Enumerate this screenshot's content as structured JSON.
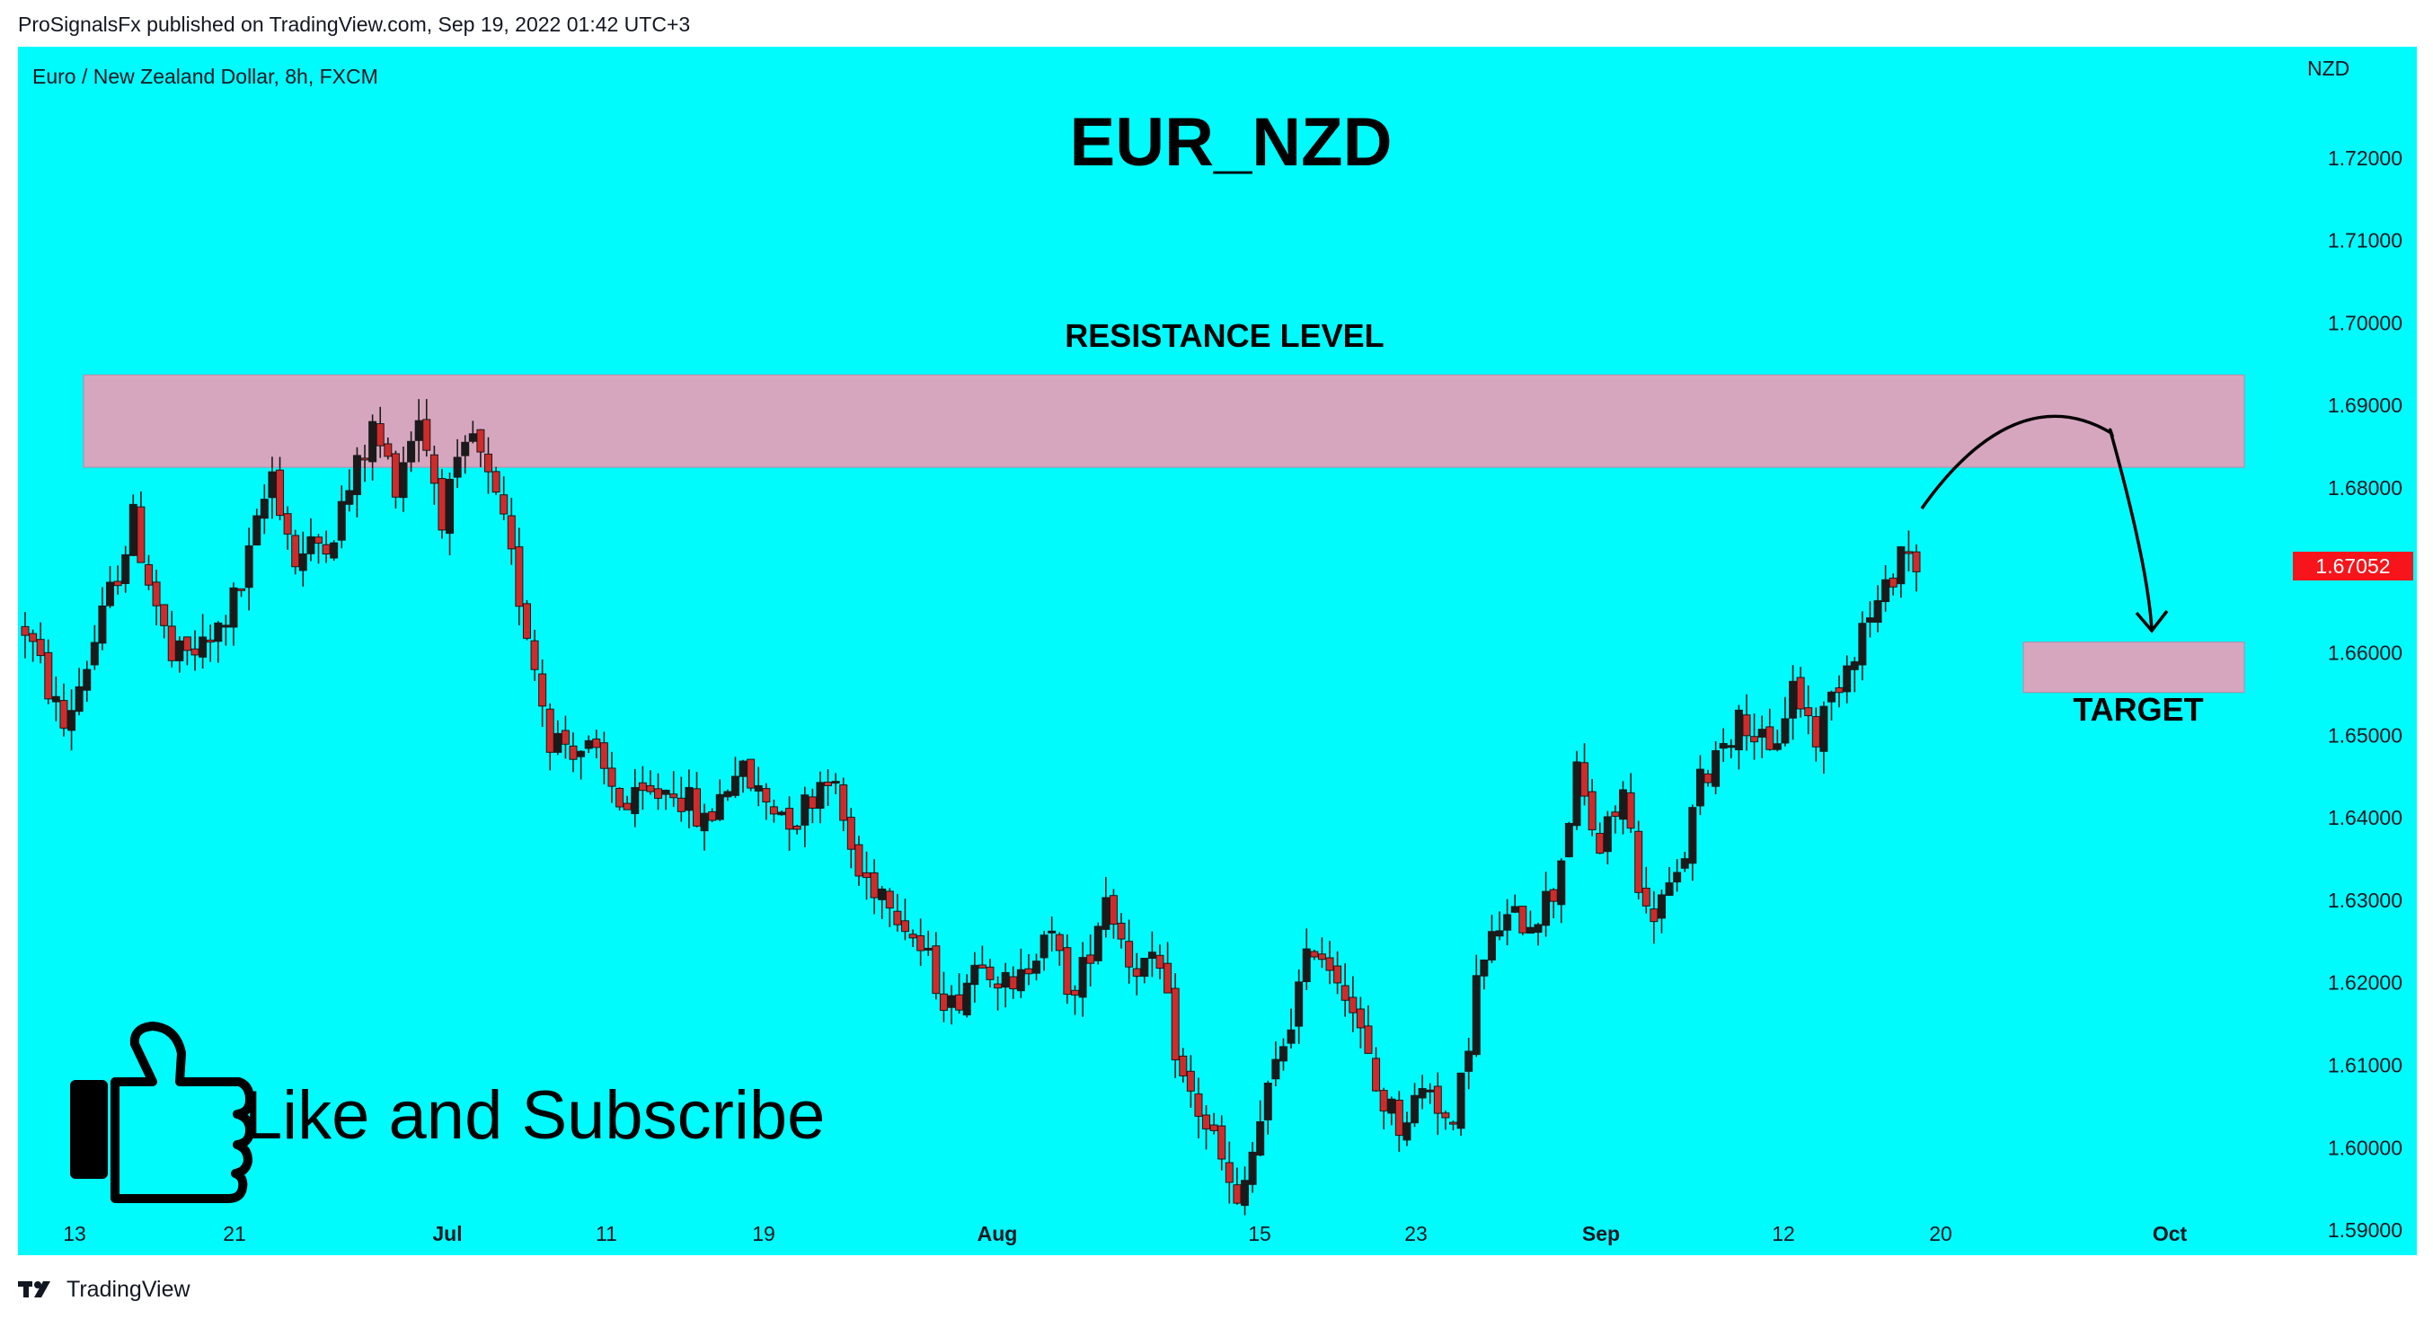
{
  "header": {
    "published_text": "ProSignalsFx published on TradingView.com, Sep 19, 2022 01:42 UTC+3"
  },
  "footer": {
    "brand": "TradingView",
    "logo_icon": "tradingview-logo-icon"
  },
  "colors": {
    "background": "#00fbfd",
    "zone": "#d6a6bf",
    "zone_border": "#b48aa6",
    "candle_up": "#1a1a1a",
    "candle_down": "#d02b2b",
    "price_tag": "#f7141a"
  },
  "chart_data": {
    "type": "candlestick",
    "symbol_info": "Euro / New Zealand Dollar, 8h, FXCM",
    "title": "EUR_NZD",
    "currency_label": "NZD",
    "last_price": "1.67052",
    "ylim": [
      1.5875,
      1.7335
    ],
    "yticks": [
      "1.72000",
      "1.71000",
      "1.70000",
      "1.69000",
      "1.68000",
      "1.67000",
      "1.66000",
      "1.65000",
      "1.64000",
      "1.63000",
      "1.62000",
      "1.61000",
      "1.60000",
      "1.59000"
    ],
    "xticks": [
      "13",
      "21",
      "Jul",
      "11",
      "19",
      "Aug",
      "15",
      "23",
      "Sep",
      "12",
      "20",
      "Oct"
    ],
    "grid": false,
    "annotations": {
      "resistance_label": "RESISTANCE LEVEL",
      "resistance_zone": [
        1.6825,
        1.6937
      ],
      "target_label": "TARGET",
      "target_zone": [
        1.6552,
        1.6613
      ],
      "projection": "arrow from last candle up into resistance, then down to target",
      "promo_text": "Like and Subscribe",
      "promo_icon": "thumbs-up-icon"
    },
    "anchors": [
      [
        0,
        1.663
      ],
      [
        5,
        1.651
      ],
      [
        10,
        1.664
      ],
      [
        14,
        1.676
      ],
      [
        19,
        1.659
      ],
      [
        24,
        1.661
      ],
      [
        28,
        1.668
      ],
      [
        32,
        1.682
      ],
      [
        35,
        1.671
      ],
      [
        40,
        1.675
      ],
      [
        45,
        1.687
      ],
      [
        48,
        1.681
      ],
      [
        51,
        1.689
      ],
      [
        54,
        1.677
      ],
      [
        58,
        1.686
      ],
      [
        62,
        1.675
      ],
      [
        65,
        1.663
      ],
      [
        68,
        1.65
      ],
      [
        73,
        1.648
      ],
      [
        78,
        1.641
      ],
      [
        84,
        1.644
      ],
      [
        88,
        1.639
      ],
      [
        92,
        1.646
      ],
      [
        96,
        1.642
      ],
      [
        100,
        1.64
      ],
      [
        104,
        1.646
      ],
      [
        108,
        1.633
      ],
      [
        112,
        1.631
      ],
      [
        116,
        1.624
      ],
      [
        120,
        1.617
      ],
      [
        124,
        1.624
      ],
      [
        128,
        1.618
      ],
      [
        132,
        1.627
      ],
      [
        136,
        1.618
      ],
      [
        140,
        1.631
      ],
      [
        143,
        1.623
      ],
      [
        147,
        1.621
      ],
      [
        150,
        1.608
      ],
      [
        154,
        1.601
      ],
      [
        157,
        1.592
      ],
      [
        160,
        1.603
      ],
      [
        164,
        1.616
      ],
      [
        167,
        1.625
      ],
      [
        171,
        1.62
      ],
      [
        175,
        1.607
      ],
      [
        178,
        1.603
      ],
      [
        182,
        1.608
      ],
      [
        185,
        1.601
      ],
      [
        188,
        1.62
      ],
      [
        191,
        1.627
      ],
      [
        195,
        1.628
      ],
      [
        198,
        1.631
      ],
      [
        201,
        1.645
      ],
      [
        204,
        1.636
      ],
      [
        207,
        1.643
      ],
      [
        210,
        1.628
      ],
      [
        214,
        1.632
      ],
      [
        217,
        1.644
      ],
      [
        220,
        1.65
      ],
      [
        223,
        1.652
      ],
      [
        226,
        1.647
      ],
      [
        229,
        1.656
      ],
      [
        232,
        1.65
      ],
      [
        235,
        1.657
      ],
      [
        238,
        1.663
      ],
      [
        241,
        1.667
      ],
      [
        243,
        1.673
      ],
      [
        245,
        1.671
      ]
    ]
  }
}
